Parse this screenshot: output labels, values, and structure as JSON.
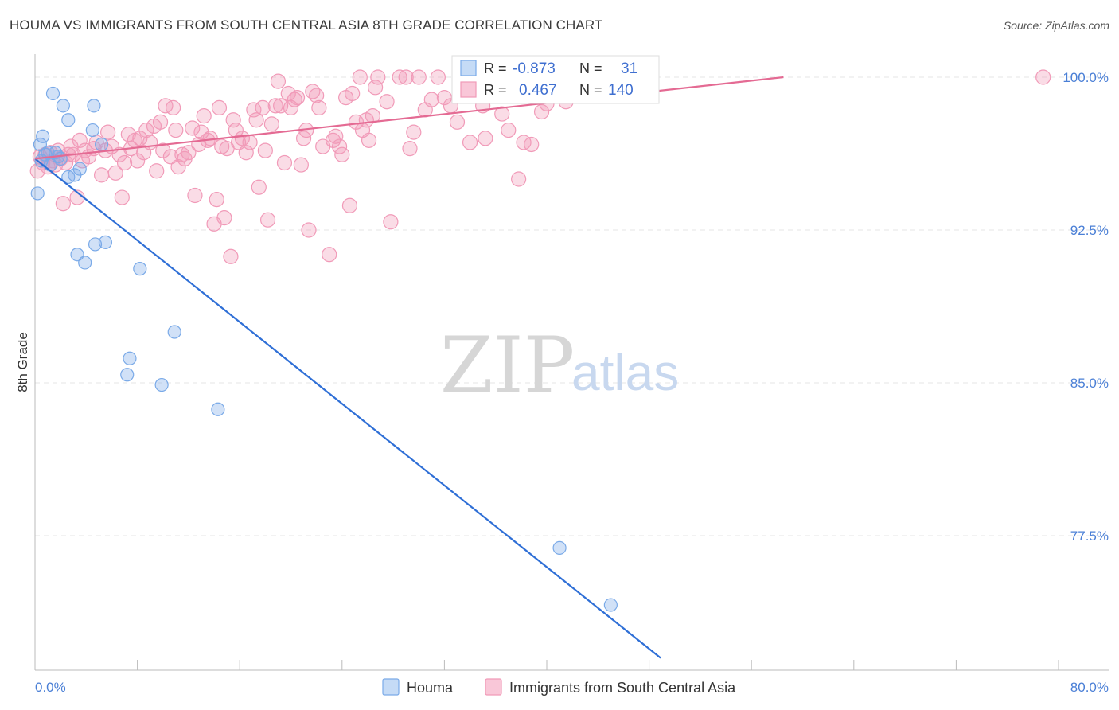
{
  "header": {
    "title": "HOUMA VS IMMIGRANTS FROM SOUTH CENTRAL ASIA 8TH GRADE CORRELATION CHART",
    "source": "Source: ZipAtlas.com"
  },
  "colors": {
    "houma": "#7aaae8",
    "houma_line": "#2f6fd6",
    "immigrants": "#f19ab8",
    "immigrants_line": "#e46a93",
    "tick_text": "#4a7fd6",
    "grid": "#e4e4e4"
  },
  "stats_box": {
    "rows": [
      {
        "r_label": "R =",
        "r_value": "-0.873",
        "n_label": "N =",
        "n_value": "31"
      },
      {
        "r_label": "R =",
        "r_value": "0.467",
        "n_label": "N =",
        "n_value": "140"
      }
    ]
  },
  "watermark": {
    "zip": "ZIP",
    "atlas": "atlas"
  },
  "chart_data": {
    "type": "scatter",
    "xlabel": "",
    "ylabel": "8th Grade",
    "xlim": [
      0,
      80
    ],
    "ylim": [
      71.5,
      100.9
    ],
    "x_tick_labels": [
      "0.0%",
      "80.0%"
    ],
    "y_ticks": [
      100.0,
      92.5,
      85.0,
      77.5
    ],
    "y_tick_labels": [
      "100.0%",
      "92.5%",
      "85.0%",
      "77.5%"
    ],
    "grid": true,
    "legend_position": "bottom-center",
    "series": [
      {
        "name": "Houma",
        "r": -0.873,
        "n": 31,
        "trend": {
          "x": [
            0,
            48.9
          ],
          "y": [
            96.0,
            71.5
          ]
        },
        "points": [
          [
            0.2,
            94.3
          ],
          [
            0.4,
            96.7
          ],
          [
            0.6,
            97.1
          ],
          [
            1.0,
            96.3
          ],
          [
            1.4,
            99.2
          ],
          [
            1.8,
            96.1
          ],
          [
            2.2,
            98.6
          ],
          [
            2.6,
            97.9
          ],
          [
            2.6,
            95.1
          ],
          [
            3.1,
            95.2
          ],
          [
            3.3,
            91.3
          ],
          [
            3.5,
            95.5
          ],
          [
            3.9,
            90.9
          ],
          [
            4.5,
            97.4
          ],
          [
            4.6,
            98.6
          ],
          [
            4.7,
            91.8
          ],
          [
            5.2,
            96.7
          ],
          [
            5.5,
            91.9
          ],
          [
            7.4,
            86.2
          ],
          [
            7.2,
            85.4
          ],
          [
            8.2,
            90.6
          ],
          [
            9.9,
            84.9
          ],
          [
            10.9,
            87.5
          ],
          [
            14.3,
            83.7
          ],
          [
            41.0,
            76.9
          ],
          [
            45.0,
            74.1
          ],
          [
            0.8,
            96.2
          ],
          [
            1.2,
            95.7
          ],
          [
            2.0,
            96.0
          ],
          [
            0.5,
            95.9
          ],
          [
            1.6,
            96.3
          ]
        ]
      },
      {
        "name": "Immigrants from South Central Asia",
        "r": 0.467,
        "n": 140,
        "trend": {
          "x": [
            0,
            58.5
          ],
          "y": [
            96.0,
            100.0
          ]
        },
        "points": [
          [
            0.2,
            95.4
          ],
          [
            0.4,
            96.1
          ],
          [
            0.6,
            95.8
          ],
          [
            0.8,
            96.2
          ],
          [
            1.0,
            95.6
          ],
          [
            1.2,
            96.3
          ],
          [
            1.4,
            95.9
          ],
          [
            1.6,
            95.7
          ],
          [
            1.8,
            96.4
          ],
          [
            2.0,
            96.0
          ],
          [
            2.2,
            93.8
          ],
          [
            2.4,
            95.8
          ],
          [
            2.6,
            96.2
          ],
          [
            2.8,
            96.6
          ],
          [
            3.0,
            96.2
          ],
          [
            3.3,
            94.1
          ],
          [
            3.5,
            96.9
          ],
          [
            3.7,
            95.9
          ],
          [
            3.9,
            96.4
          ],
          [
            4.2,
            96.1
          ],
          [
            4.6,
            96.5
          ],
          [
            4.8,
            96.8
          ],
          [
            5.2,
            95.2
          ],
          [
            5.5,
            96.4
          ],
          [
            5.7,
            97.3
          ],
          [
            6.0,
            96.6
          ],
          [
            6.3,
            95.3
          ],
          [
            6.6,
            96.2
          ],
          [
            6.8,
            94.1
          ],
          [
            7.0,
            95.8
          ],
          [
            7.3,
            97.2
          ],
          [
            7.5,
            96.5
          ],
          [
            7.8,
            96.9
          ],
          [
            8.0,
            95.9
          ],
          [
            8.2,
            97.0
          ],
          [
            8.5,
            96.3
          ],
          [
            8.7,
            97.4
          ],
          [
            9.0,
            96.8
          ],
          [
            9.3,
            97.6
          ],
          [
            9.5,
            95.4
          ],
          [
            9.8,
            97.8
          ],
          [
            10.0,
            96.4
          ],
          [
            10.2,
            98.6
          ],
          [
            10.6,
            96.1
          ],
          [
            10.8,
            98.5
          ],
          [
            11.0,
            97.4
          ],
          [
            11.2,
            95.6
          ],
          [
            11.5,
            96.2
          ],
          [
            11.7,
            96.0
          ],
          [
            12.0,
            96.3
          ],
          [
            12.3,
            97.5
          ],
          [
            12.5,
            94.2
          ],
          [
            12.8,
            96.7
          ],
          [
            13.0,
            97.3
          ],
          [
            13.2,
            98.1
          ],
          [
            13.5,
            96.9
          ],
          [
            13.7,
            97.0
          ],
          [
            14.0,
            92.8
          ],
          [
            14.2,
            94.0
          ],
          [
            14.4,
            98.5
          ],
          [
            14.6,
            96.6
          ],
          [
            14.8,
            93.1
          ],
          [
            15.0,
            96.5
          ],
          [
            15.3,
            91.2
          ],
          [
            15.5,
            97.9
          ],
          [
            15.7,
            97.4
          ],
          [
            15.9,
            96.8
          ],
          [
            16.2,
            97.0
          ],
          [
            16.5,
            96.3
          ],
          [
            16.8,
            96.8
          ],
          [
            17.1,
            98.4
          ],
          [
            17.3,
            97.9
          ],
          [
            17.5,
            94.6
          ],
          [
            17.8,
            98.5
          ],
          [
            18.0,
            96.4
          ],
          [
            18.2,
            93.0
          ],
          [
            18.5,
            97.7
          ],
          [
            18.8,
            98.6
          ],
          [
            19.0,
            99.8
          ],
          [
            19.2,
            98.6
          ],
          [
            19.5,
            95.8
          ],
          [
            19.8,
            99.2
          ],
          [
            20.0,
            98.5
          ],
          [
            20.3,
            98.9
          ],
          [
            20.5,
            99.0
          ],
          [
            20.8,
            95.7
          ],
          [
            21.0,
            97.0
          ],
          [
            21.2,
            97.4
          ],
          [
            21.4,
            92.5
          ],
          [
            21.7,
            99.3
          ],
          [
            22.0,
            99.1
          ],
          [
            22.2,
            98.5
          ],
          [
            22.5,
            96.6
          ],
          [
            23.0,
            91.3
          ],
          [
            23.3,
            96.9
          ],
          [
            23.5,
            97.1
          ],
          [
            23.8,
            96.6
          ],
          [
            24.0,
            96.2
          ],
          [
            24.3,
            99.0
          ],
          [
            24.6,
            93.7
          ],
          [
            24.8,
            99.2
          ],
          [
            25.1,
            97.8
          ],
          [
            25.4,
            100.0
          ],
          [
            25.6,
            97.4
          ],
          [
            25.9,
            97.9
          ],
          [
            26.1,
            96.9
          ],
          [
            26.4,
            98.1
          ],
          [
            26.6,
            99.5
          ],
          [
            27.5,
            98.8
          ],
          [
            27.8,
            92.9
          ],
          [
            28.5,
            100.0
          ],
          [
            29.0,
            100.0
          ],
          [
            29.3,
            96.5
          ],
          [
            29.6,
            97.3
          ],
          [
            30.0,
            100.0
          ],
          [
            31.0,
            98.9
          ],
          [
            31.5,
            100.0
          ],
          [
            32.5,
            98.6
          ],
          [
            33.0,
            97.8
          ],
          [
            34.5,
            99.7
          ],
          [
            35.0,
            98.6
          ],
          [
            36.0,
            99.5
          ],
          [
            36.5,
            98.2
          ],
          [
            37.0,
            97.4
          ],
          [
            37.5,
            99.3
          ],
          [
            37.8,
            95.0
          ],
          [
            38.2,
            96.8
          ],
          [
            38.8,
            96.7
          ],
          [
            39.2,
            99.2
          ],
          [
            40.0,
            98.7
          ],
          [
            41.5,
            98.8
          ],
          [
            78.8,
            100.0
          ],
          [
            35.2,
            97.0
          ],
          [
            34.0,
            96.8
          ],
          [
            39.6,
            98.3
          ],
          [
            30.5,
            98.4
          ],
          [
            33.5,
            99.5
          ],
          [
            32.0,
            99.0
          ],
          [
            26.8,
            100.0
          ],
          [
            36.8,
            100.0
          ]
        ]
      }
    ]
  }
}
